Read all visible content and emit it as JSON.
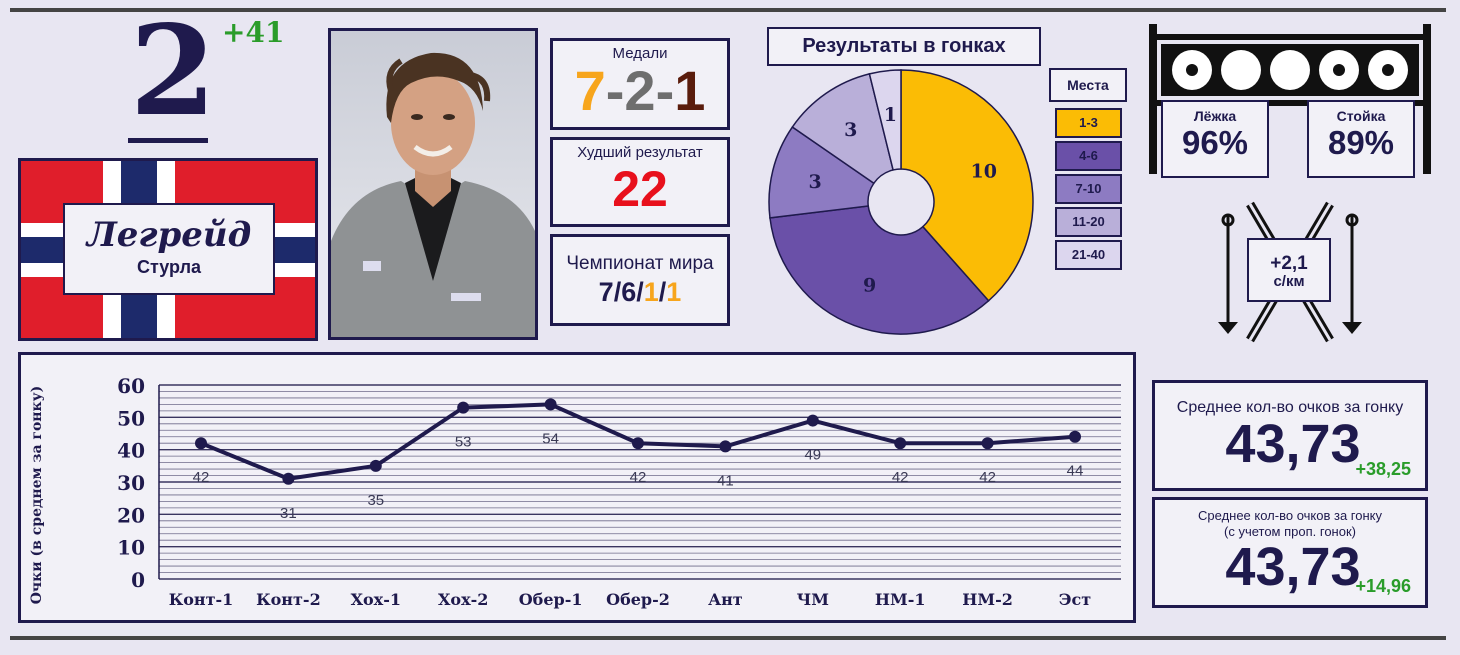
{
  "rank": {
    "value": "2",
    "delta": "+41"
  },
  "athlete": {
    "surname": "Легрейд",
    "firstname": "Стурла"
  },
  "colors": {
    "navy": "#1f1a4d",
    "gold": "#f7a51c",
    "silver": "#6e6e6e",
    "bronze": "#5a1c0c",
    "red": "#e8101c",
    "green": "#2a9c2a"
  },
  "medals": {
    "label": "Медали",
    "gold": "7",
    "silver": "2",
    "bronze": "1",
    "sep": "-"
  },
  "worst": {
    "label": "Худший результат",
    "value": "22"
  },
  "world_champ": {
    "label": "Чемпионат мира",
    "p1": "7",
    "p2": "6",
    "p3": "1",
    "p4": "1",
    "sep": "/"
  },
  "pie": {
    "title": "Результаты в гонках",
    "legend_title": "Места",
    "slices": [
      {
        "label": "1-3",
        "value": 10,
        "color": "#fbbc05"
      },
      {
        "label": "4-6",
        "value": 9,
        "color": "#6a50a8"
      },
      {
        "label": "7-10",
        "value": 3,
        "color": "#8d7bc2"
      },
      {
        "label": "11-20",
        "value": 3,
        "color": "#b9afd9"
      },
      {
        "label": "21-40",
        "value": 1,
        "color": "#dcd6ee"
      }
    ]
  },
  "shooting": {
    "prone_label": "Лёжка",
    "prone_value": "96%",
    "standing_label": "Стойка",
    "standing_value": "89%"
  },
  "speed": {
    "value": "+2,1",
    "unit": "с/км"
  },
  "chart_data": {
    "type": "line",
    "ylabel": "Очки (в среднем за гонку)",
    "categories": [
      "Конт-1",
      "Конт-2",
      "Хох-1",
      "Хох-2",
      "Обер-1",
      "Обер-2",
      "Ант",
      "ЧМ",
      "НМ-1",
      "НМ-2",
      "Эст"
    ],
    "values": [
      42,
      31,
      35,
      53,
      54,
      42,
      41,
      49,
      42,
      42,
      44
    ],
    "ylim": [
      0,
      60
    ],
    "yticks": [
      0,
      10,
      20,
      30,
      40,
      50,
      60
    ]
  },
  "avg1": {
    "label": "Среднее кол-во очков за гонку",
    "value": "43,73",
    "delta": "+38,25"
  },
  "avg2": {
    "label1": "Среднее кол-во очков за гонку",
    "label2": "(с учетом проп. гонок)",
    "value": "43,73",
    "delta": "+14,96"
  }
}
